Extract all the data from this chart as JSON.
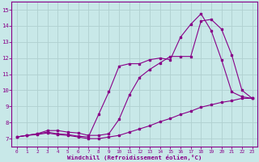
{
  "bg_color": "#c8e8e8",
  "grid_color": "#b0d0d0",
  "line_color": "#880088",
  "xlim": [
    -0.5,
    23.5
  ],
  "ylim": [
    6.5,
    15.5
  ],
  "xticks": [
    0,
    1,
    2,
    3,
    4,
    5,
    6,
    7,
    8,
    9,
    10,
    11,
    12,
    13,
    14,
    15,
    16,
    17,
    18,
    19,
    20,
    21,
    22,
    23
  ],
  "yticks": [
    7,
    8,
    9,
    10,
    11,
    12,
    13,
    14,
    15
  ],
  "xlabel": "Windchill (Refroidissement éolien,°C)",
  "line1_x": [
    0,
    1,
    2,
    3,
    4,
    5,
    6,
    7,
    8,
    9,
    10,
    11,
    12,
    13,
    14,
    15,
    16,
    17,
    18,
    19,
    20,
    21,
    22,
    23
  ],
  "line1_y": [
    7.1,
    7.2,
    7.25,
    7.35,
    7.25,
    7.2,
    7.1,
    7.0,
    7.0,
    7.1,
    7.2,
    7.4,
    7.6,
    7.8,
    8.05,
    8.25,
    8.5,
    8.7,
    8.95,
    9.1,
    9.25,
    9.35,
    9.5,
    9.5
  ],
  "line2_x": [
    0,
    1,
    2,
    3,
    4,
    5,
    6,
    7,
    8,
    9,
    10,
    11,
    12,
    13,
    14,
    15,
    16,
    17,
    18,
    19,
    20,
    21,
    22,
    23
  ],
  "line2_y": [
    7.1,
    7.2,
    7.3,
    7.4,
    7.3,
    7.25,
    7.15,
    7.1,
    8.5,
    9.9,
    11.5,
    11.65,
    11.65,
    11.9,
    12.0,
    11.9,
    13.3,
    14.1,
    14.75,
    13.7,
    11.9,
    9.9,
    9.6,
    9.5
  ],
  "line3_x": [
    0,
    1,
    2,
    3,
    4,
    5,
    6,
    7,
    8,
    9,
    10,
    11,
    12,
    13,
    14,
    15,
    16,
    17,
    18,
    19,
    20,
    21,
    22,
    23
  ],
  "line3_y": [
    7.1,
    7.2,
    7.3,
    7.5,
    7.5,
    7.4,
    7.35,
    7.2,
    7.2,
    7.3,
    8.2,
    9.7,
    10.8,
    11.3,
    11.7,
    12.1,
    12.1,
    12.1,
    14.3,
    14.4,
    13.8,
    12.2,
    10.0,
    9.5
  ]
}
